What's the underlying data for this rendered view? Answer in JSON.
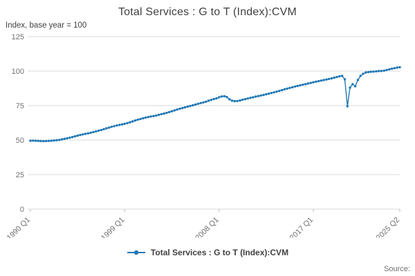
{
  "source_label": "Source:",
  "chart_data": {
    "type": "line",
    "title": "Total Services : G to T (Index):CVM",
    "axis_note": "Index, base year = 100",
    "ylim": [
      0,
      125
    ],
    "y_ticks": [
      0,
      25,
      50,
      75,
      100,
      125
    ],
    "grid": "horizontal",
    "legend_position": "bottom-center",
    "x_start": "1990 Q1",
    "x_end": "2025 Q2",
    "x_ticks": [
      {
        "index": 0,
        "label": "1990 Q1"
      },
      {
        "index": 36,
        "label": "1999 Q1"
      },
      {
        "index": 72,
        "label": "2008 Q1"
      },
      {
        "index": 108,
        "label": "2017 Q1"
      },
      {
        "index": 141,
        "label": "2025 Q2"
      }
    ],
    "series": [
      {
        "name": "Total Services : G to T (Index):CVM",
        "color": "#1f78b4",
        "values": [
          49.5,
          49.6,
          49.5,
          49.4,
          49.3,
          49.2,
          49.3,
          49.4,
          49.5,
          49.7,
          49.9,
          50.1,
          50.5,
          50.9,
          51.3,
          51.7,
          52.2,
          52.7,
          53.2,
          53.7,
          54.1,
          54.5,
          54.9,
          55.3,
          55.8,
          56.3,
          56.8,
          57.3,
          57.9,
          58.5,
          59.0,
          59.6,
          60.1,
          60.6,
          61.0,
          61.4,
          61.8,
          62.3,
          62.9,
          63.5,
          64.2,
          64.8,
          65.3,
          65.8,
          66.3,
          66.7,
          67.1,
          67.4,
          67.8,
          68.3,
          68.8,
          69.2,
          69.7,
          70.3,
          70.9,
          71.5,
          72.1,
          72.7,
          73.2,
          73.7,
          74.2,
          74.7,
          75.2,
          75.7,
          76.3,
          76.8,
          77.3,
          77.8,
          78.5,
          79.1,
          79.7,
          80.2,
          81.0,
          81.6,
          81.8,
          81.2,
          79.5,
          78.5,
          78.2,
          78.3,
          78.7,
          79.2,
          79.7,
          80.1,
          80.6,
          81.0,
          81.5,
          81.9,
          82.3,
          82.7,
          83.2,
          83.6,
          84.1,
          84.6,
          85.1,
          85.6,
          86.2,
          86.8,
          87.3,
          87.8,
          88.3,
          88.8,
          89.2,
          89.7,
          90.1,
          90.5,
          91.0,
          91.4,
          91.9,
          92.3,
          92.7,
          93.1,
          93.5,
          93.9,
          94.3,
          94.7,
          95.2,
          95.7,
          96.2,
          96.5,
          94.0,
          74.5,
          88.0,
          90.5,
          89.0,
          93.5,
          96.5,
          98.0,
          99.0,
          99.3,
          99.5,
          99.6,
          99.8,
          100.0,
          100.1,
          100.3,
          100.8,
          101.3,
          101.7,
          102.1,
          102.5,
          102.8
        ]
      }
    ]
  },
  "legend": {
    "label": "Total Services : G to T (Index):CVM"
  }
}
